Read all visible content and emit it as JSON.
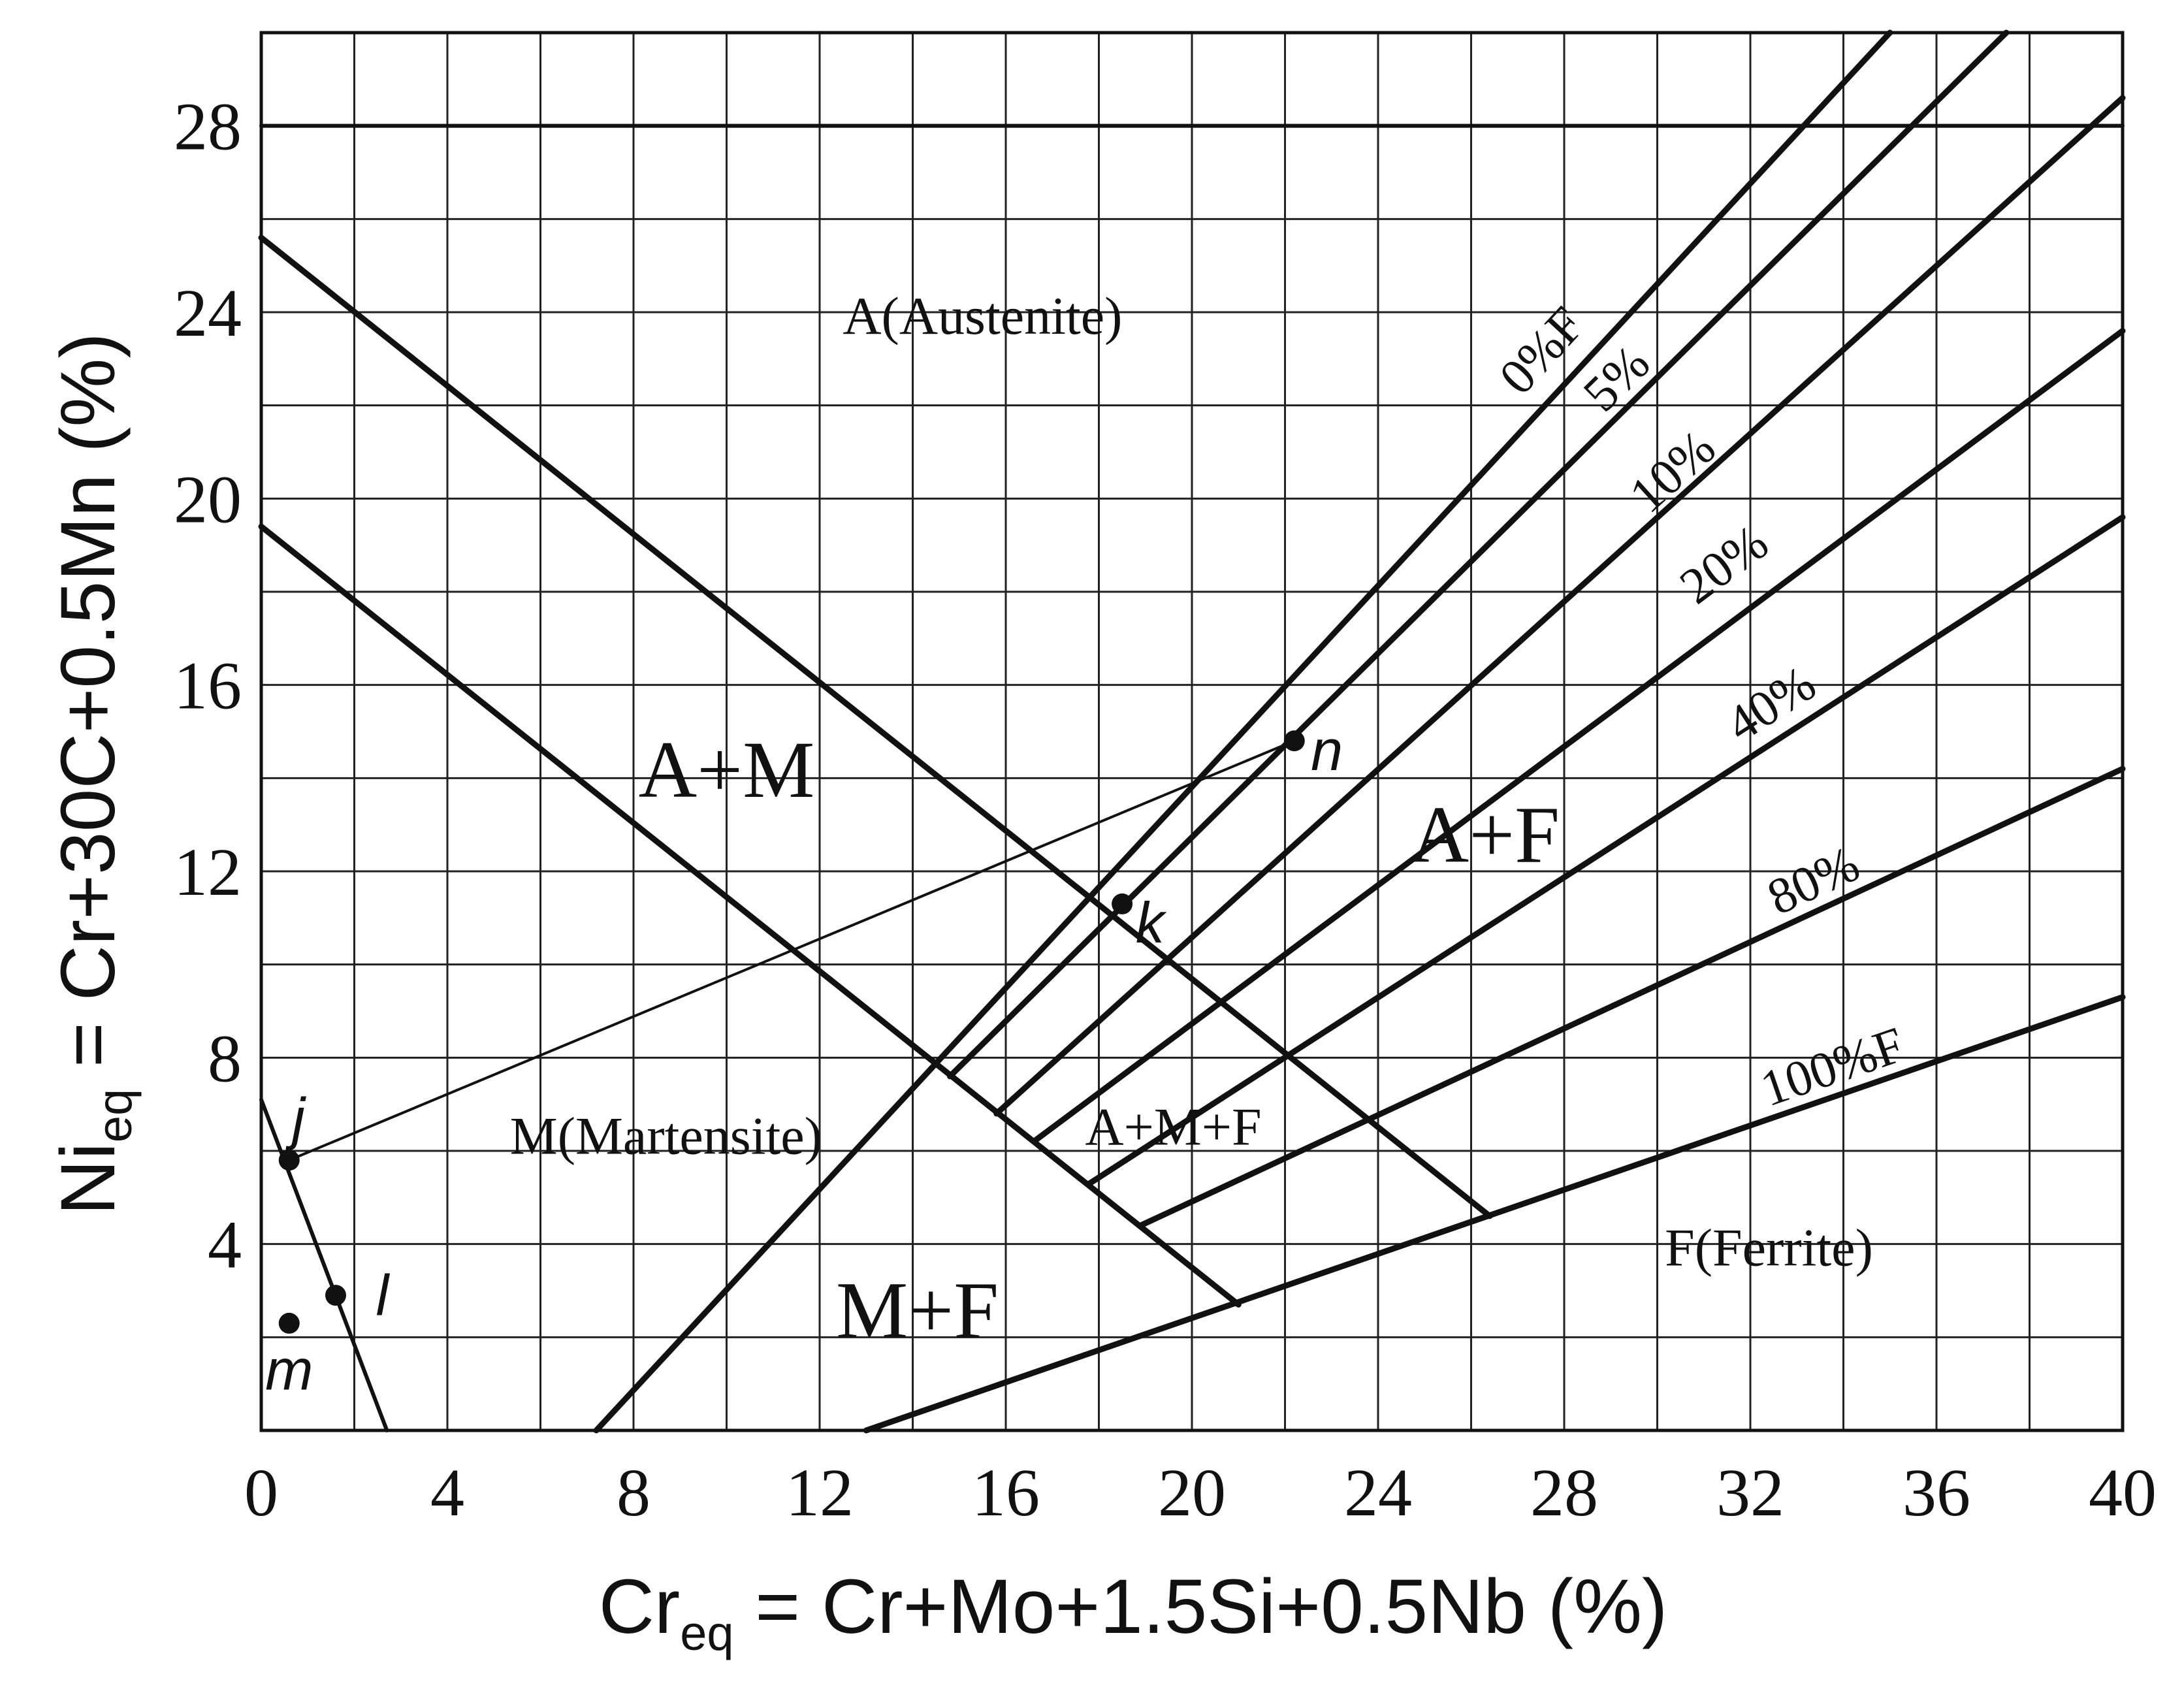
{
  "chart_data": {
    "type": "diagram",
    "xlabel": {
      "main": "Cr",
      "sub": "eq",
      "rest": " = Cr+Mo+1.5Si+0.5Nb (%)"
    },
    "ylabel": {
      "main": "Ni",
      "sub": "eq",
      "rest": " = Cr+30C+0.5Mn (%)"
    },
    "xlim": [
      0,
      40
    ],
    "ylim": [
      0,
      30
    ],
    "grid": true,
    "x_ticks": [
      "0",
      "4",
      "8",
      "12",
      "16",
      "20",
      "24",
      "28",
      "32",
      "36",
      "40"
    ],
    "y_ticks": [
      "4",
      "8",
      "12",
      "16",
      "20",
      "24",
      "28"
    ],
    "region_labels": [
      {
        "text": "A(Austenite)",
        "x": 15.5,
        "y": 23.8,
        "size": "small"
      },
      {
        "text": "A+M",
        "x": 10,
        "y": 14,
        "size": "big"
      },
      {
        "text": "A+F",
        "x": 26.3,
        "y": 12.6,
        "size": "big"
      },
      {
        "text": "A+M+F",
        "x": 19.6,
        "y": 6.4,
        "size": "small"
      },
      {
        "text": "M(Martensite)",
        "x": 8.7,
        "y": 6.2,
        "size": "small"
      },
      {
        "text": "M+F",
        "x": 14.1,
        "y": 2.4,
        "size": "big"
      },
      {
        "text": "F(Ferrite)",
        "x": 32.4,
        "y": 3.8,
        "size": "small"
      }
    ],
    "boundary_lines": [
      {
        "from": [
          0,
          28
        ],
        "to": [
          40,
          28
        ],
        "width": "medium"
      },
      {
        "from": [
          0,
          25.6
        ],
        "to": [
          26.4,
          4.6
        ],
        "width": "thick"
      },
      {
        "from": [
          0,
          19.4
        ],
        "to": [
          21,
          2.7
        ],
        "width": "thick"
      },
      {
        "from": [
          7.2,
          0
        ],
        "to": [
          35,
          30
        ],
        "width": "thick"
      },
      {
        "from": [
          14.8,
          7.6
        ],
        "to": [
          37.5,
          30
        ],
        "width": "thick"
      },
      {
        "from": [
          15.8,
          6.8
        ],
        "to": [
          40,
          28.6
        ],
        "width": "thick"
      },
      {
        "from": [
          16.6,
          6.2
        ],
        "to": [
          40,
          23.6
        ],
        "width": "thick"
      },
      {
        "from": [
          17.8,
          5.3
        ],
        "to": [
          40,
          19.6
        ],
        "width": "thick"
      },
      {
        "from": [
          18.9,
          4.4
        ],
        "to": [
          40,
          14.2
        ],
        "width": "thick"
      },
      {
        "from": [
          13,
          0
        ],
        "to": [
          40,
          9.3
        ],
        "width": "thick"
      },
      {
        "from": [
          0,
          7.1
        ],
        "to": [
          2.7,
          0
        ],
        "width": "medium"
      }
    ],
    "ferrite_lines": [
      {
        "label": "0%F",
        "x": 27.6,
        "y": 23.1
      },
      {
        "label": "5%",
        "x": 29.2,
        "y": 22.5
      },
      {
        "label": "10%",
        "x": 30.4,
        "y": 20.5
      },
      {
        "label": "20%",
        "x": 31.5,
        "y": 18.5
      },
      {
        "label": "40%",
        "x": 32.5,
        "y": 15.5
      },
      {
        "label": "80%",
        "x": 33.4,
        "y": 11.7
      },
      {
        "label": "100%F",
        "x": 33.8,
        "y": 7.7
      }
    ],
    "points": [
      {
        "label": "j",
        "x": 0.6,
        "y": 5.8,
        "lx": 0.8,
        "ly": 6.6
      },
      {
        "label": "l",
        "x": 1.6,
        "y": 2.9,
        "lx": 2.6,
        "ly": 2.8
      },
      {
        "label": "m",
        "x": 0.6,
        "y": 2.3,
        "lx": 0.6,
        "ly": 1.2
      },
      {
        "label": "k",
        "x": 18.5,
        "y": 11.3,
        "lx": 19.1,
        "ly": 10.8
      },
      {
        "label": "n",
        "x": 22.2,
        "y": 14.8,
        "lx": 22.9,
        "ly": 14.5
      }
    ],
    "connecting_lines": [
      {
        "from": "j",
        "to": "n"
      }
    ]
  }
}
